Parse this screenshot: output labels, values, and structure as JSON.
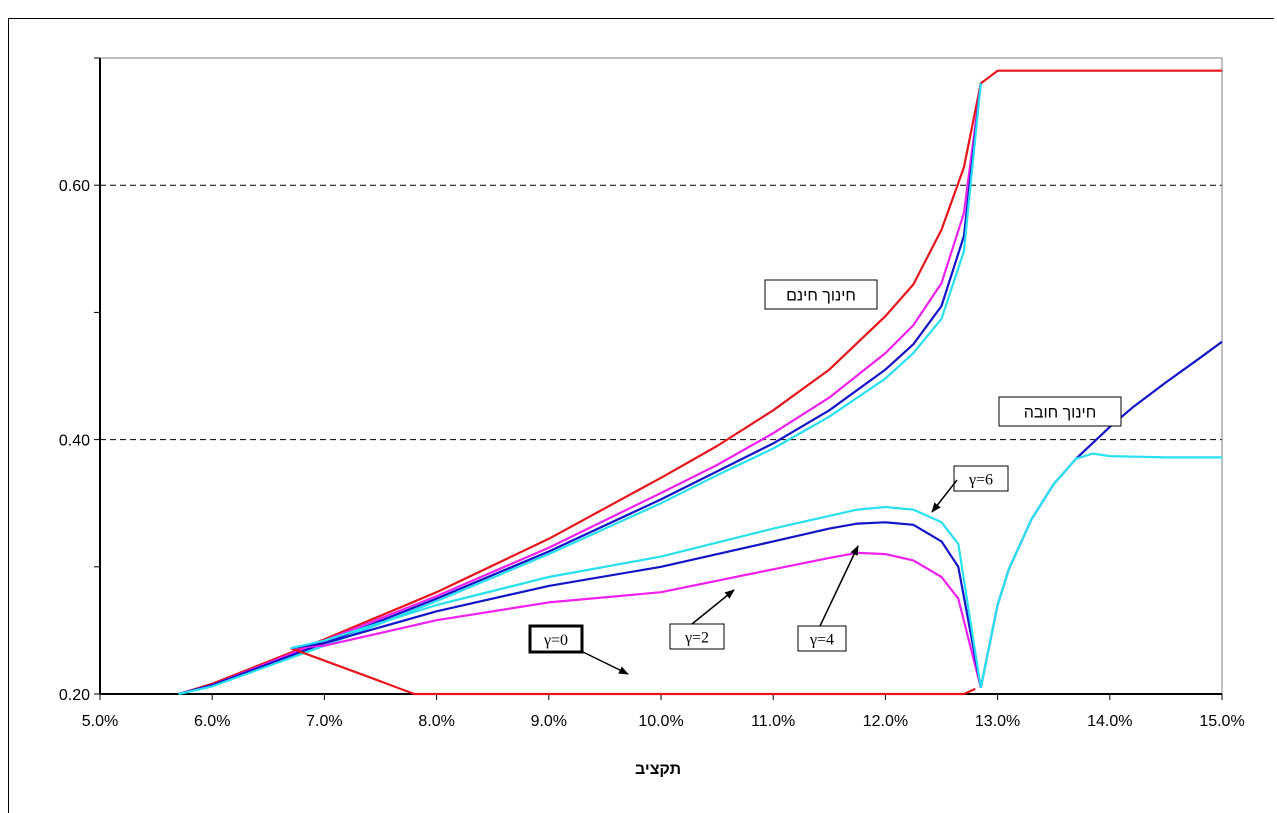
{
  "chart_data": {
    "type": "line",
    "title": "",
    "xlabel": "תקציב",
    "ylabel": "",
    "xlim": [
      0.05,
      0.15
    ],
    "ylim": [
      0.2,
      0.7
    ],
    "x_ticks": [
      "5.0%",
      "6.0%",
      "7.0%",
      "8.0%",
      "9.0%",
      "10.0%",
      "11.0%",
      "12.0%",
      "13.0%",
      "14.0%",
      "15.0%"
    ],
    "y_ticks": [
      "0.20",
      "0.40",
      "0.60"
    ],
    "grid": "horizontal dashed at 0.40 and 0.60",
    "colors": {
      "gamma0": "#e8141c",
      "gamma2": "#f020f0",
      "gamma4": "#1414c8",
      "gamma6": "#28e0f0",
      "axis": "#000000",
      "plot_border": "#808080"
    },
    "series": [
      {
        "key": "g0_free",
        "color": "#e8141c",
        "x": [
          0.057,
          0.06,
          0.07,
          0.08,
          0.09,
          0.1,
          0.105,
          0.11,
          0.115,
          0.12,
          0.1225,
          0.125,
          0.127,
          0.1285,
          0.13,
          0.135,
          0.14,
          0.15
        ],
        "y": [
          0.2,
          0.208,
          0.243,
          0.28,
          0.322,
          0.37,
          0.395,
          0.423,
          0.455,
          0.497,
          0.522,
          0.565,
          0.614,
          0.68,
          0.69,
          0.69,
          0.69,
          0.69
        ]
      },
      {
        "key": "g2_free",
        "color": "#f020f0",
        "x": [
          0.057,
          0.06,
          0.07,
          0.08,
          0.09,
          0.1,
          0.105,
          0.11,
          0.115,
          0.12,
          0.1225,
          0.125,
          0.127,
          0.1285
        ],
        "y": [
          0.2,
          0.207,
          0.242,
          0.277,
          0.315,
          0.358,
          0.38,
          0.405,
          0.433,
          0.468,
          0.49,
          0.523,
          0.578,
          0.68
        ]
      },
      {
        "key": "g4_free",
        "color": "#1414c8",
        "x": [
          0.057,
          0.06,
          0.07,
          0.08,
          0.09,
          0.1,
          0.105,
          0.11,
          0.115,
          0.12,
          0.1225,
          0.125,
          0.127,
          0.1285
        ],
        "y": [
          0.2,
          0.207,
          0.24,
          0.275,
          0.312,
          0.353,
          0.375,
          0.397,
          0.423,
          0.455,
          0.475,
          0.505,
          0.56,
          0.68
        ]
      },
      {
        "key": "g6_free",
        "color": "#28e0f0",
        "x": [
          0.057,
          0.06,
          0.07,
          0.08,
          0.09,
          0.1,
          0.105,
          0.11,
          0.115,
          0.12,
          0.1225,
          0.125,
          0.127,
          0.1285
        ],
        "y": [
          0.2,
          0.206,
          0.238,
          0.273,
          0.31,
          0.35,
          0.372,
          0.393,
          0.418,
          0.448,
          0.468,
          0.495,
          0.548,
          0.68
        ]
      },
      {
        "key": "g0_comp",
        "color": "#e8141c",
        "x": [
          0.067,
          0.075,
          0.078,
          0.09,
          0.1,
          0.11,
          0.12,
          0.127,
          0.128
        ],
        "y": [
          0.236,
          0.21,
          0.2,
          0.2,
          0.2,
          0.2,
          0.2,
          0.2,
          0.204
        ]
      },
      {
        "key": "g2_comp",
        "color": "#f020f0",
        "x": [
          0.067,
          0.07,
          0.08,
          0.09,
          0.1,
          0.11,
          0.115,
          0.1175,
          0.12,
          0.1225,
          0.125,
          0.1265,
          0.1285
        ],
        "y": [
          0.236,
          0.238,
          0.258,
          0.272,
          0.28,
          0.298,
          0.307,
          0.311,
          0.31,
          0.305,
          0.292,
          0.275,
          0.205
        ]
      },
      {
        "key": "g4_comp",
        "color": "#1414c8",
        "x": [
          0.067,
          0.07,
          0.08,
          0.09,
          0.1,
          0.11,
          0.115,
          0.1175,
          0.12,
          0.1225,
          0.125,
          0.1265,
          0.1285
        ],
        "y": [
          0.236,
          0.24,
          0.265,
          0.285,
          0.3,
          0.32,
          0.33,
          0.334,
          0.335,
          0.333,
          0.32,
          0.3,
          0.205
        ]
      },
      {
        "key": "g6_comp",
        "color": "#28e0f0",
        "x": [
          0.067,
          0.07,
          0.08,
          0.09,
          0.1,
          0.11,
          0.115,
          0.1175,
          0.12,
          0.1225,
          0.125,
          0.1265,
          0.1285
        ],
        "y": [
          0.236,
          0.242,
          0.27,
          0.292,
          0.308,
          0.33,
          0.34,
          0.345,
          0.347,
          0.345,
          0.335,
          0.318,
          0.205
        ]
      },
      {
        "key": "g4_high",
        "color": "#1414c8",
        "x": [
          0.1285,
          0.13,
          0.131,
          0.133,
          0.135,
          0.137,
          0.14,
          0.142,
          0.145,
          0.148,
          0.15
        ],
        "y": [
          0.205,
          0.27,
          0.298,
          0.337,
          0.365,
          0.385,
          0.41,
          0.425,
          0.445,
          0.464,
          0.477
        ]
      },
      {
        "key": "g6_high",
        "color": "#28e0f0",
        "x": [
          0.1285,
          0.13,
          0.131,
          0.133,
          0.135,
          0.137,
          0.1385,
          0.14,
          0.145,
          0.15
        ],
        "y": [
          0.205,
          0.27,
          0.298,
          0.337,
          0.365,
          0.385,
          0.389,
          0.387,
          0.386,
          0.386
        ]
      }
    ],
    "annotations": [
      {
        "key": "free",
        "text": "חינוך חינם",
        "boxed": true
      },
      {
        "key": "comp",
        "text": "חינוך חובה",
        "boxed": true
      },
      {
        "key": "g6",
        "text": "γ=6",
        "boxed": true
      },
      {
        "key": "g2",
        "text": "γ=2",
        "boxed": true
      },
      {
        "key": "g4",
        "text": "γ=4",
        "boxed": true
      },
      {
        "key": "g0",
        "text": "γ=0",
        "boxed": true,
        "thick_border": true
      }
    ]
  }
}
